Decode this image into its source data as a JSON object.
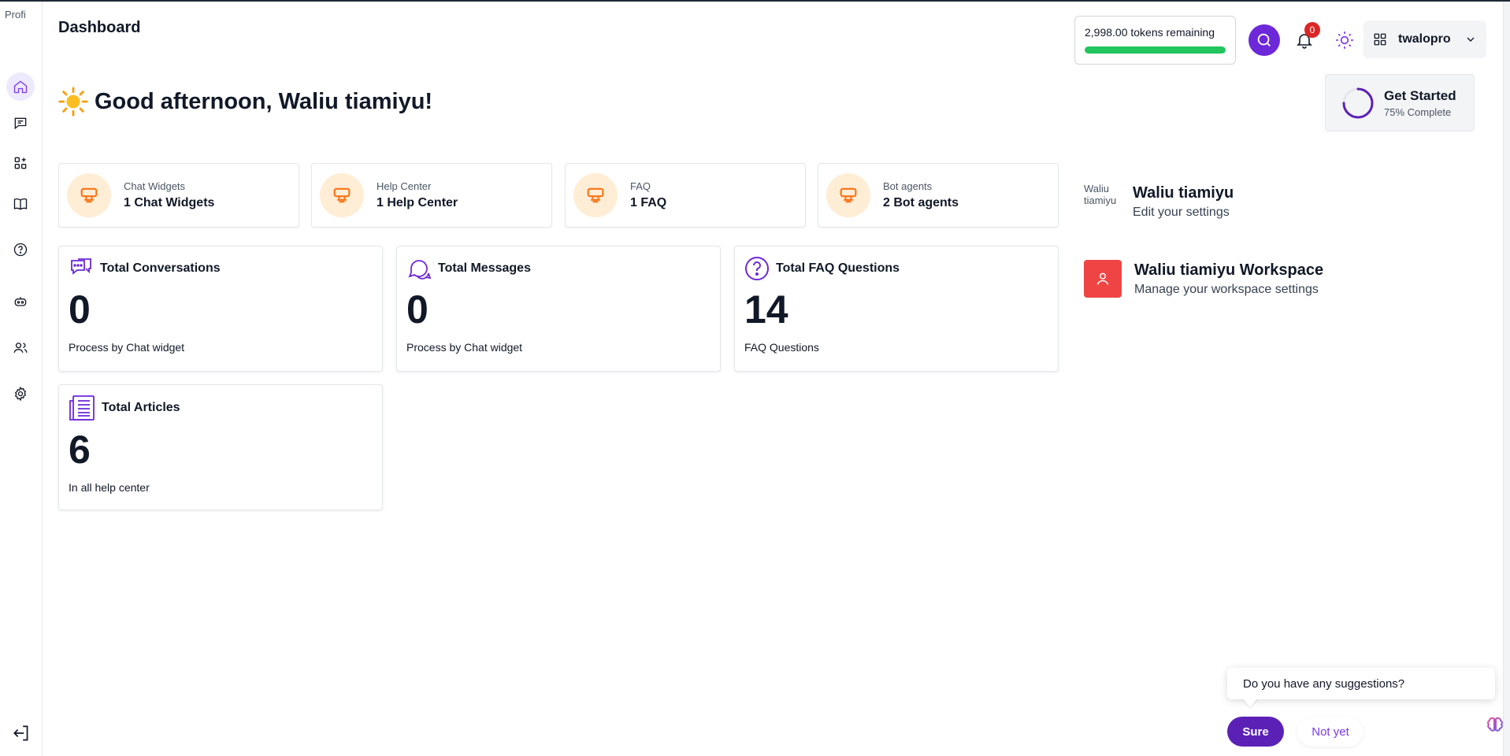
{
  "sidebar": {
    "logo_alt": "Profi",
    "items": [
      {
        "name": "home",
        "icon": "home-icon",
        "active": true
      },
      {
        "name": "chats",
        "icon": "chat-icon"
      },
      {
        "name": "widgets",
        "icon": "apps-icon"
      },
      {
        "name": "help-center",
        "icon": "book-icon"
      },
      {
        "name": "faq",
        "icon": "question-icon"
      },
      {
        "name": "bot-agents",
        "icon": "robot-icon"
      },
      {
        "name": "users",
        "icon": "users-icon"
      },
      {
        "name": "settings",
        "icon": "gear-icon"
      }
    ],
    "logout_icon": "logout-icon"
  },
  "header": {
    "title": "Dashboard",
    "tokens_text": "2,998.00 tokens remaining",
    "tokens_fraction": 1.0,
    "notification_count": "0",
    "username": "twalopro"
  },
  "greeting": {
    "emoji": "☀️",
    "text": "Good afternoon, Waliu tiamiyu!"
  },
  "get_started": {
    "title": "Get Started",
    "subtitle": "75% Complete",
    "progress": 0.75
  },
  "mini_stats": [
    {
      "label": "Chat Widgets",
      "value": "1 Chat Widgets"
    },
    {
      "label": "Help Center",
      "value": "1 Help Center"
    },
    {
      "label": "FAQ",
      "value": "1 FAQ"
    },
    {
      "label": "Bot agents",
      "value": "2 Bot agents"
    }
  ],
  "cards": [
    {
      "title": "Total Conversations",
      "value": "0",
      "footer": "Process by Chat widget",
      "icon": "conversations-icon"
    },
    {
      "title": "Total Messages",
      "value": "0",
      "footer": "Process by Chat widget",
      "icon": "messages-icon"
    },
    {
      "title": "Total FAQ Questions",
      "value": "14",
      "footer": "FAQ Questions",
      "icon": "question-icon"
    },
    {
      "title": "Total Articles",
      "value": "6",
      "footer": "In all help center",
      "icon": "articles-icon"
    }
  ],
  "profile": {
    "img_alt": "Waliu tiamiyu",
    "name": "Waliu tiamiyu",
    "subtitle": "Edit your settings"
  },
  "workspace": {
    "name": "Waliu tiamiyu Workspace",
    "subtitle": "Manage your workspace settings"
  },
  "suggestion": {
    "question": "Do you have any suggestions?",
    "sure_label": "Sure",
    "not_yet_label": "Not yet"
  },
  "colors": {
    "accent": "#6d28d9",
    "token_bar": "#22c55e",
    "badge": "#dc2626",
    "workspace": "#ef4444",
    "mini_icon_bg": "#ffedd5",
    "mini_icon": "#f97316"
  }
}
